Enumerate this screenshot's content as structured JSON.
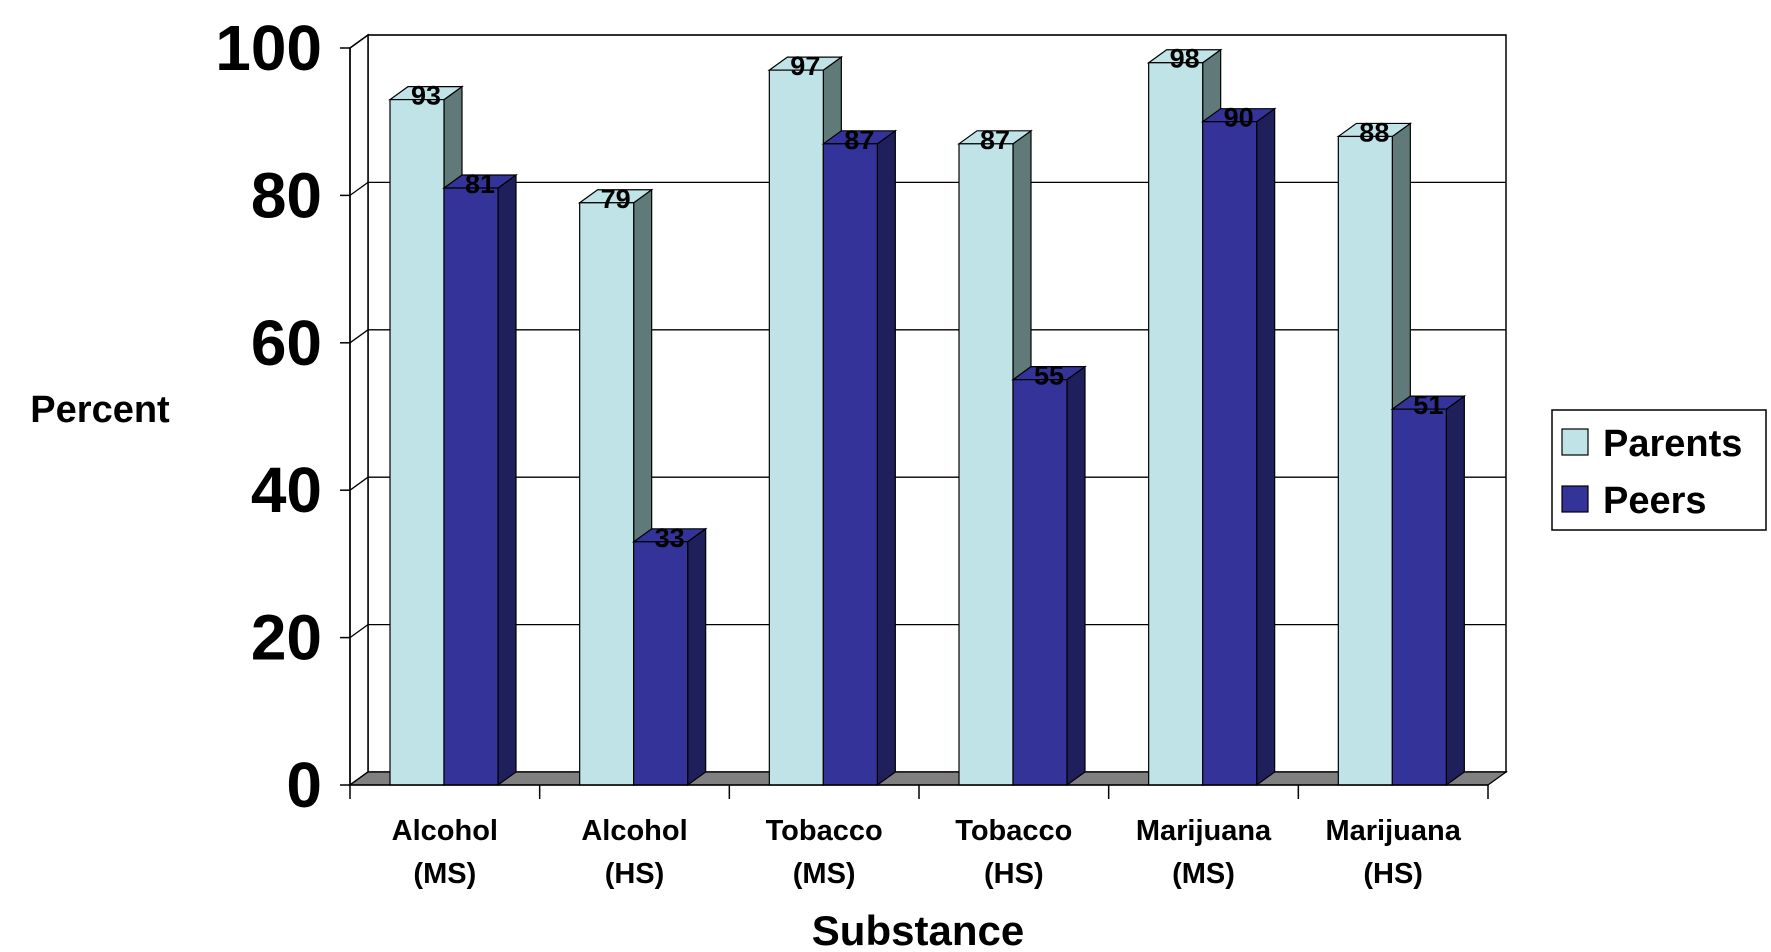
{
  "chart_data": {
    "type": "bar",
    "style": "3d-clustered-column",
    "categories": [
      [
        "Alcohol",
        "(MS)"
      ],
      [
        "Alcohol",
        "(HS)"
      ],
      [
        "Tobacco",
        "(MS)"
      ],
      [
        "Tobacco",
        "(HS)"
      ],
      [
        "Marijuana",
        "(MS)"
      ],
      [
        "Marijuana",
        "(HS)"
      ]
    ],
    "series": [
      {
        "name": "Parents",
        "values": [
          93,
          79,
          97,
          87,
          98,
          88
        ],
        "color": "#bfe3e6",
        "side_color": "#607a7a"
      },
      {
        "name": "Peers",
        "values": [
          81,
          33,
          87,
          55,
          90,
          51
        ],
        "color": "#333399",
        "side_color": "#1f1f5c"
      }
    ],
    "ylabel": "Percent",
    "xlabel": "Substance",
    "ylim": [
      0,
      100
    ],
    "yticks": [
      "0",
      "20",
      "40",
      "60",
      "80",
      "100"
    ],
    "grid": true,
    "legend_position": "right",
    "data_labels": true
  }
}
